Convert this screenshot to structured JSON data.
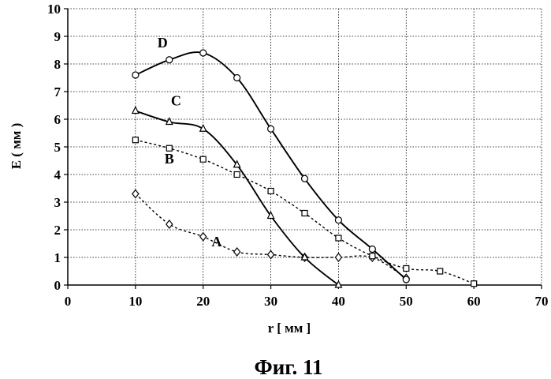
{
  "chart_data": {
    "type": "line",
    "title": "",
    "caption": "Фиг. 11",
    "xlabel": "r [ мм ]",
    "ylabel": "E ( мм )",
    "xlim": [
      0,
      70
    ],
    "ylim": [
      0,
      10
    ],
    "x_ticks": [
      0,
      10,
      20,
      30,
      40,
      50,
      60,
      70
    ],
    "y_ticks": [
      0,
      1,
      2,
      3,
      4,
      5,
      6,
      7,
      8,
      9,
      10
    ],
    "grid": true,
    "legend": "inline labels",
    "series": [
      {
        "name": "A",
        "marker": "diamond",
        "line": "dashed",
        "x": [
          10,
          15,
          20,
          25,
          30,
          35,
          40,
          45,
          50
        ],
        "y": [
          3.3,
          2.2,
          1.75,
          1.2,
          1.1,
          1.0,
          1.0,
          1.0,
          0.25
        ]
      },
      {
        "name": "B",
        "marker": "square",
        "line": "dashed",
        "x": [
          10,
          15,
          20,
          25,
          30,
          35,
          40,
          45,
          50,
          55,
          60
        ],
        "y": [
          5.25,
          4.95,
          4.55,
          4.0,
          3.4,
          2.6,
          1.7,
          1.05,
          0.6,
          0.5,
          0.05
        ]
      },
      {
        "name": "C",
        "marker": "triangle",
        "line": "solid",
        "x": [
          10,
          15,
          20,
          25,
          30,
          35,
          40
        ],
        "y": [
          6.3,
          5.9,
          5.65,
          4.35,
          2.5,
          1.0,
          0.0
        ]
      },
      {
        "name": "D",
        "marker": "circle",
        "line": "solid",
        "x": [
          10,
          15,
          20,
          25,
          30,
          35,
          40,
          45,
          50
        ],
        "y": [
          7.6,
          8.15,
          8.4,
          7.5,
          5.65,
          3.85,
          2.35,
          1.3,
          0.2
        ]
      }
    ]
  }
}
